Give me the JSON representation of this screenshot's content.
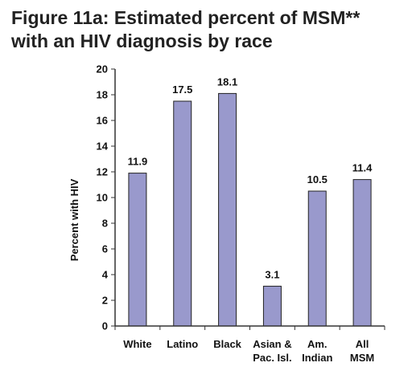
{
  "page": {
    "title_line1": "Figure 11a: Estimated percent of MSM**",
    "title_line2": "with an HIV diagnosis by race"
  },
  "chart_data": {
    "type": "bar",
    "title": "Figure 11a: Estimated percent of MSM** with an HIV diagnosis by race",
    "xlabel": "",
    "ylabel": "Percent with HIV",
    "ylim": [
      0,
      20
    ],
    "yticks": [
      0,
      2,
      4,
      6,
      8,
      10,
      12,
      14,
      16,
      18,
      20
    ],
    "categories": [
      [
        "White"
      ],
      [
        "Latino"
      ],
      [
        "Black"
      ],
      [
        "Asian &",
        "Pac. Isl."
      ],
      [
        "Am.",
        "Indian"
      ],
      [
        "All",
        "MSM"
      ]
    ],
    "values": [
      11.9,
      17.5,
      18.1,
      3.1,
      10.5,
      11.4
    ],
    "data_labels": [
      "11.9",
      "17.5",
      "18.1",
      "3.1",
      "10.5",
      "11.4"
    ],
    "bar_color": "#9999cc",
    "bar_stroke": "#222222",
    "grid": false,
    "legend": "none"
  }
}
